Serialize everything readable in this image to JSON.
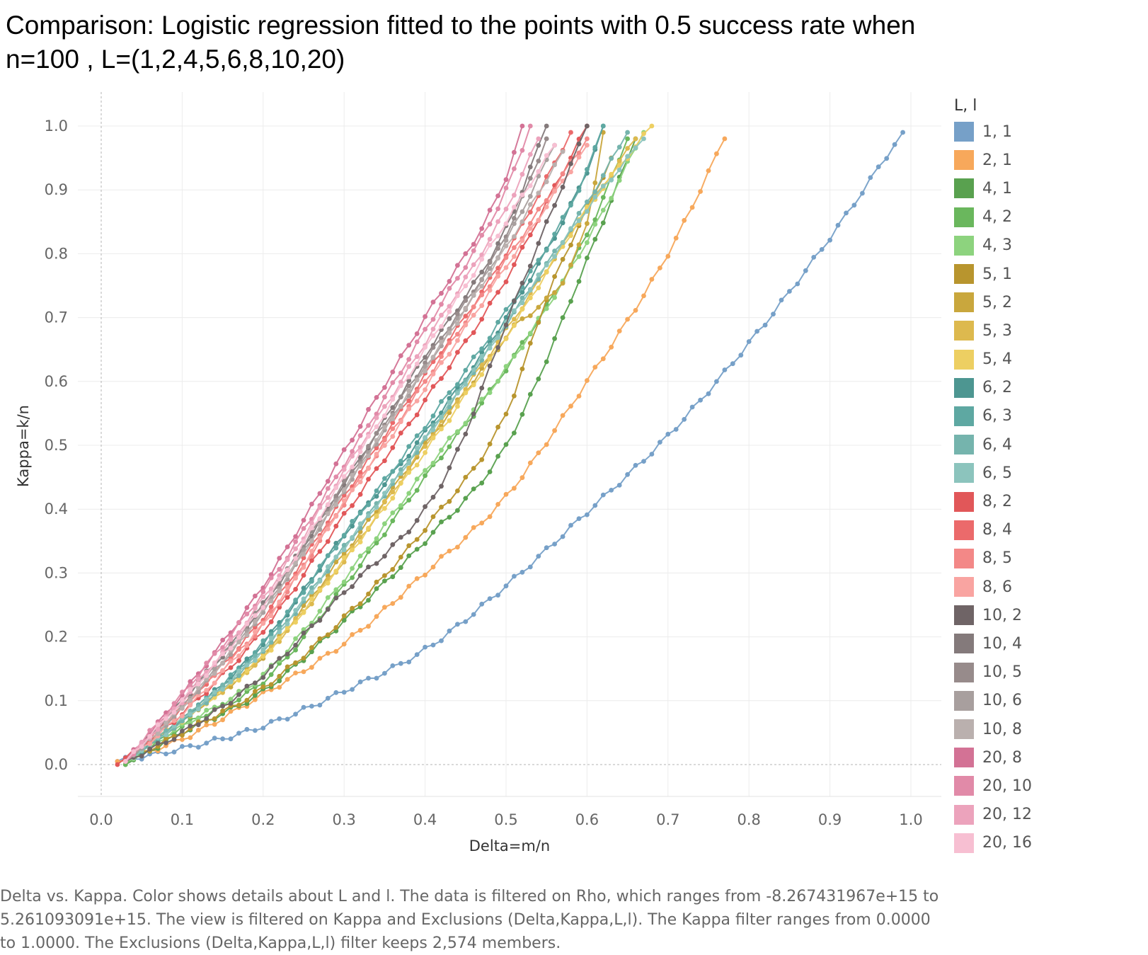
{
  "chart_data": {
    "type": "line",
    "title": "Comparison: Logistic regression fitted to the points with 0.5 success rate when n=100 , L=(1,2,4,5,6,8,10,20)",
    "xlabel": "Delta=m/n",
    "ylabel": "Kappa=k/n",
    "xlim": [
      0,
      1.0
    ],
    "ylim": [
      0,
      1.0
    ],
    "x_ticks": [
      "0.0",
      "0.1",
      "0.2",
      "0.3",
      "0.4",
      "0.5",
      "0.6",
      "0.7",
      "0.8",
      "0.9",
      "1.0"
    ],
    "y_ticks": [
      "0.0",
      "0.1",
      "0.2",
      "0.3",
      "0.4",
      "0.5",
      "0.6",
      "0.7",
      "0.8",
      "0.9",
      "1.0"
    ],
    "grid": true,
    "legend_title": "L, l",
    "legend_position": "right",
    "series": [
      {
        "name": "1, 1",
        "color": "#76a0c8",
        "x": [
          0.02,
          0.1,
          0.2,
          0.3,
          0.4,
          0.5,
          0.6,
          0.7,
          0.8,
          0.9,
          0.99
        ],
        "y": [
          0.005,
          0.025,
          0.06,
          0.115,
          0.18,
          0.28,
          0.395,
          0.515,
          0.66,
          0.825,
          0.99
        ]
      },
      {
        "name": "2, 1",
        "color": "#f7a85b",
        "x": [
          0.02,
          0.1,
          0.2,
          0.3,
          0.4,
          0.5,
          0.6,
          0.7,
          0.77
        ],
        "y": [
          0.005,
          0.04,
          0.11,
          0.19,
          0.3,
          0.42,
          0.6,
          0.8,
          0.98
        ]
      },
      {
        "name": "4, 1",
        "color": "#59a14f",
        "x": [
          0.03,
          0.1,
          0.2,
          0.3,
          0.4,
          0.5,
          0.6,
          0.66
        ],
        "y": [
          0.0,
          0.05,
          0.115,
          0.225,
          0.35,
          0.5,
          0.79,
          0.98
        ]
      },
      {
        "name": "4, 2",
        "color": "#6ab75d",
        "x": [
          0.03,
          0.1,
          0.2,
          0.3,
          0.4,
          0.5,
          0.6,
          0.65
        ],
        "y": [
          0.0,
          0.06,
          0.13,
          0.28,
          0.45,
          0.62,
          0.83,
          0.98
        ]
      },
      {
        "name": "4, 3",
        "color": "#8dd37e",
        "x": [
          0.03,
          0.1,
          0.2,
          0.3,
          0.4,
          0.5,
          0.6,
          0.67
        ],
        "y": [
          0.005,
          0.06,
          0.14,
          0.29,
          0.46,
          0.62,
          0.82,
          0.99
        ]
      },
      {
        "name": "5, 1",
        "color": "#b8952e",
        "x": [
          0.03,
          0.1,
          0.2,
          0.3,
          0.4,
          0.5,
          0.55,
          0.63
        ],
        "y": [
          0.005,
          0.05,
          0.12,
          0.23,
          0.37,
          0.55,
          0.73,
          0.95
        ]
      },
      {
        "name": "5, 2",
        "color": "#c9a73d",
        "x": [
          0.03,
          0.1,
          0.2,
          0.3,
          0.4,
          0.5,
          0.6,
          0.62
        ],
        "y": [
          0.005,
          0.07,
          0.17,
          0.33,
          0.5,
          0.67,
          0.85,
          0.99
        ]
      },
      {
        "name": "5, 3",
        "color": "#ddb94e",
        "x": [
          0.03,
          0.1,
          0.2,
          0.3,
          0.4,
          0.5,
          0.6,
          0.66
        ],
        "y": [
          0.005,
          0.07,
          0.17,
          0.32,
          0.5,
          0.68,
          0.87,
          0.98
        ]
      },
      {
        "name": "5, 4",
        "color": "#edcf62",
        "x": [
          0.03,
          0.1,
          0.2,
          0.3,
          0.4,
          0.5,
          0.6,
          0.68
        ],
        "y": [
          0.005,
          0.07,
          0.17,
          0.32,
          0.49,
          0.67,
          0.87,
          1.0
        ]
      },
      {
        "name": "6, 2",
        "color": "#4d9691",
        "x": [
          0.03,
          0.1,
          0.2,
          0.3,
          0.4,
          0.5,
          0.6,
          0.62
        ],
        "y": [
          0.005,
          0.07,
          0.19,
          0.36,
          0.52,
          0.7,
          0.93,
          1.0
        ]
      },
      {
        "name": "6, 3",
        "color": "#5ea8a2",
        "x": [
          0.03,
          0.1,
          0.2,
          0.3,
          0.4,
          0.5,
          0.6,
          0.62
        ],
        "y": [
          0.005,
          0.07,
          0.19,
          0.36,
          0.53,
          0.71,
          0.93,
          1.0
        ]
      },
      {
        "name": "6, 4",
        "color": "#75b4ad",
        "x": [
          0.03,
          0.1,
          0.2,
          0.3,
          0.4,
          0.5,
          0.6,
          0.65
        ],
        "y": [
          0.005,
          0.07,
          0.18,
          0.34,
          0.51,
          0.69,
          0.88,
          0.99
        ]
      },
      {
        "name": "6, 5",
        "color": "#8cc4bd",
        "x": [
          0.03,
          0.1,
          0.2,
          0.3,
          0.4,
          0.5,
          0.6,
          0.67
        ],
        "y": [
          0.005,
          0.07,
          0.18,
          0.34,
          0.51,
          0.69,
          0.87,
          0.98
        ]
      },
      {
        "name": "8, 2",
        "color": "#e15759",
        "x": [
          0.02,
          0.1,
          0.2,
          0.3,
          0.4,
          0.5,
          0.55,
          0.6
        ],
        "y": [
          0.0,
          0.08,
          0.21,
          0.39,
          0.57,
          0.76,
          0.88,
          1.0
        ]
      },
      {
        "name": "8, 4",
        "color": "#eb6a6b",
        "x": [
          0.03,
          0.1,
          0.2,
          0.3,
          0.4,
          0.5,
          0.58
        ],
        "y": [
          0.005,
          0.09,
          0.23,
          0.42,
          0.61,
          0.8,
          0.99
        ]
      },
      {
        "name": "8, 5",
        "color": "#f38887",
        "x": [
          0.03,
          0.1,
          0.2,
          0.3,
          0.4,
          0.5,
          0.6
        ],
        "y": [
          0.005,
          0.09,
          0.22,
          0.41,
          0.6,
          0.79,
          0.98
        ]
      },
      {
        "name": "8, 6",
        "color": "#f9a4a1",
        "x": [
          0.03,
          0.1,
          0.2,
          0.3,
          0.4,
          0.5,
          0.6
        ],
        "y": [
          0.005,
          0.08,
          0.22,
          0.41,
          0.59,
          0.78,
          0.97
        ]
      },
      {
        "name": "10, 2",
        "color": "#6f6466",
        "x": [
          0.03,
          0.1,
          0.2,
          0.3,
          0.4,
          0.44,
          0.5,
          0.6
        ],
        "y": [
          0.005,
          0.05,
          0.14,
          0.27,
          0.4,
          0.49,
          0.69,
          1.0
        ]
      },
      {
        "name": "10, 4",
        "color": "#847a7b",
        "x": [
          0.03,
          0.1,
          0.2,
          0.3,
          0.4,
          0.5,
          0.55
        ],
        "y": [
          0.005,
          0.1,
          0.25,
          0.44,
          0.64,
          0.84,
          1.0
        ]
      },
      {
        "name": "10, 5",
        "color": "#978b8b",
        "x": [
          0.03,
          0.1,
          0.2,
          0.3,
          0.4,
          0.5,
          0.55
        ],
        "y": [
          0.005,
          0.1,
          0.25,
          0.44,
          0.63,
          0.83,
          0.98
        ]
      },
      {
        "name": "10, 6",
        "color": "#a89f9e",
        "x": [
          0.03,
          0.1,
          0.2,
          0.3,
          0.4,
          0.5,
          0.56
        ],
        "y": [
          0.005,
          0.09,
          0.24,
          0.43,
          0.62,
          0.82,
          0.97
        ]
      },
      {
        "name": "10, 8",
        "color": "#bab0ae",
        "x": [
          0.03,
          0.1,
          0.2,
          0.3,
          0.4,
          0.5,
          0.57
        ],
        "y": [
          0.005,
          0.09,
          0.24,
          0.43,
          0.62,
          0.81,
          0.96
        ]
      },
      {
        "name": "20, 8",
        "color": "#d37295",
        "x": [
          0.03,
          0.1,
          0.2,
          0.3,
          0.4,
          0.5,
          0.52
        ],
        "y": [
          0.005,
          0.11,
          0.28,
          0.49,
          0.7,
          0.92,
          1.0
        ]
      },
      {
        "name": "20, 10",
        "color": "#e18aa8",
        "x": [
          0.03,
          0.1,
          0.2,
          0.3,
          0.4,
          0.5,
          0.53
        ],
        "y": [
          0.005,
          0.11,
          0.27,
          0.47,
          0.68,
          0.9,
          1.0
        ]
      },
      {
        "name": "20, 12",
        "color": "#eca3bc",
        "x": [
          0.03,
          0.1,
          0.2,
          0.3,
          0.4,
          0.5,
          0.54
        ],
        "y": [
          0.005,
          0.1,
          0.26,
          0.46,
          0.66,
          0.87,
          0.98
        ]
      },
      {
        "name": "20, 16",
        "color": "#f7bfd2",
        "x": [
          0.03,
          0.1,
          0.2,
          0.3,
          0.4,
          0.5,
          0.56
        ],
        "y": [
          0.005,
          0.1,
          0.25,
          0.45,
          0.65,
          0.85,
          0.97
        ]
      }
    ]
  },
  "caption": "Delta vs. Kappa.  Color shows details about L and l. The data is filtered on Rho, which ranges from -8.267431967e+15 to 5.261093091e+15. The view is filtered on Kappa and Exclusions (Delta,Kappa,L,l). The Kappa filter ranges from 0.0000 to 1.0000. The Exclusions (Delta,Kappa,L,l) filter keeps 2,574 members."
}
